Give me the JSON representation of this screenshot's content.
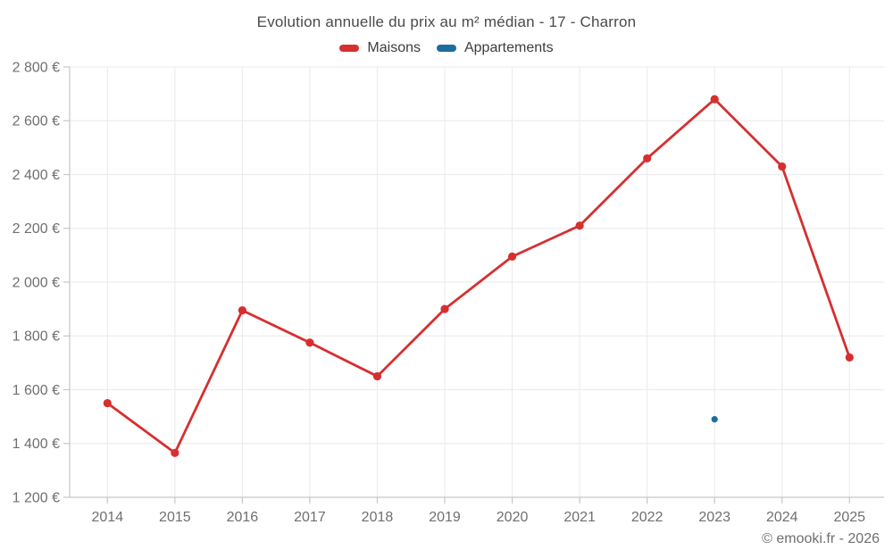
{
  "chart": {
    "title": "Evolution annuelle du prix au m² médian - 17 - Charron",
    "watermark": "© emooki.fr - 2026",
    "legend": [
      {
        "label": "Maisons",
        "color": "#d62f30"
      },
      {
        "label": "Appartements",
        "color": "#1b6e9e"
      }
    ]
  },
  "colors": {
    "background": "#ffffff",
    "title_text": "#4a4a4a",
    "legend_text": "#3d3d3d",
    "tick_label": "#6f6f6f",
    "grid_line": "#ededed",
    "axis_line": "#c6c6c6",
    "maisons_red": "#d62f30",
    "appartements_blue": "#1b6e9e"
  },
  "chart_data": {
    "type": "line",
    "title": "Evolution annuelle du prix au m² médian - 17 - Charron",
    "categories": [
      "2014",
      "2015",
      "2016",
      "2017",
      "2018",
      "2019",
      "2020",
      "2021",
      "2022",
      "2023",
      "2024",
      "2025"
    ],
    "series": [
      {
        "name": "Maisons",
        "color": "#d62f30",
        "values": [
          1550,
          1365,
          1895,
          1775,
          1650,
          1900,
          2095,
          2210,
          2460,
          2680,
          2430,
          1720
        ]
      },
      {
        "name": "Appartements",
        "color": "#1b6e9e",
        "values": [
          null,
          null,
          null,
          null,
          null,
          null,
          null,
          null,
          null,
          1490,
          null,
          null
        ]
      }
    ],
    "ylabel": "",
    "xlabel": "",
    "ylim": [
      1200,
      2800
    ],
    "ytick_step": 200,
    "ytick_labels": [
      "1 200 €",
      "1 400 €",
      "1 600 €",
      "1 800 €",
      "2 000 €",
      "2 200 €",
      "2 400 €",
      "2 600 €",
      "2 800 €"
    ],
    "grid": true,
    "legend_position": "top"
  }
}
